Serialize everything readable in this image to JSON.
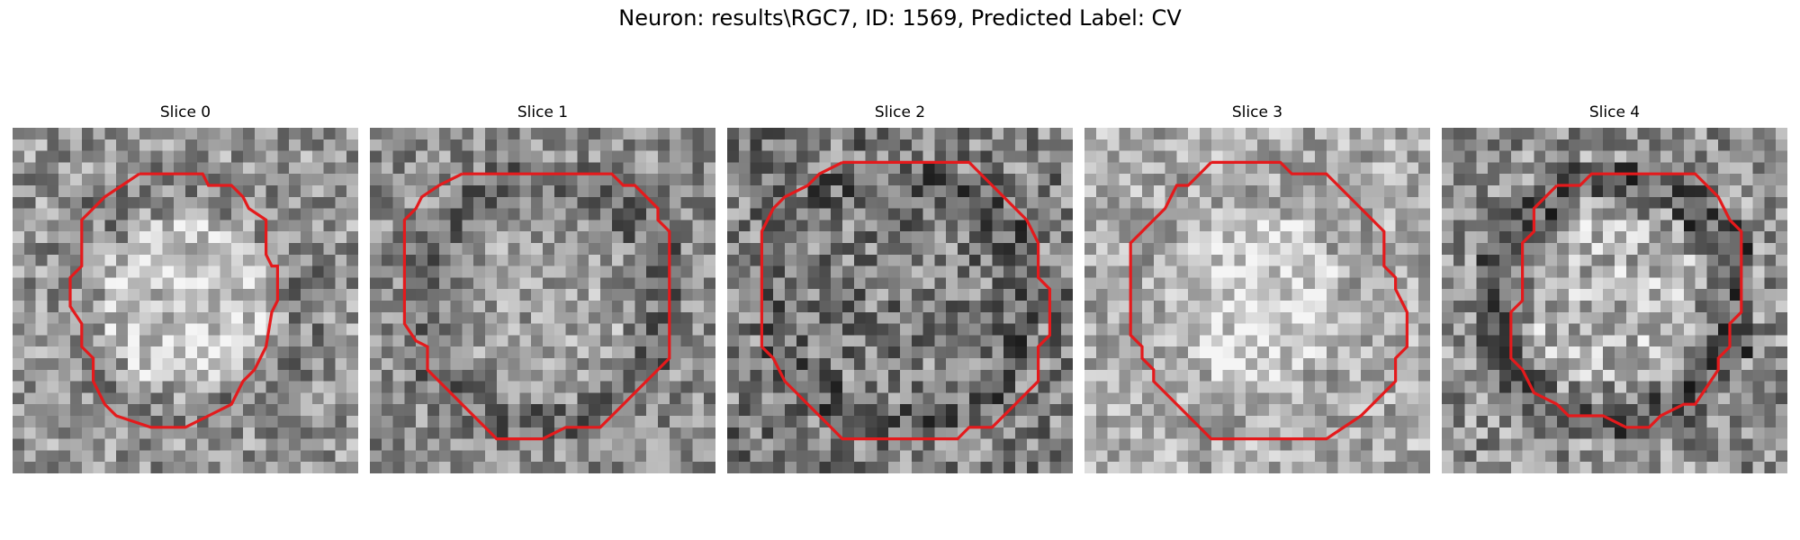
{
  "figure": {
    "title": "Neuron: results\\RGC7, ID: 1569, Predicted Label: CV"
  },
  "panels": [
    {
      "title": "Slice 0",
      "seed": 11,
      "base": 150,
      "contrast": 62,
      "inner_bright": 45,
      "ring_dark": 18
    },
    {
      "title": "Slice 1",
      "seed": 23,
      "base": 140,
      "contrast": 58,
      "inner_bright": 20,
      "ring_dark": 30
    },
    {
      "title": "Slice 2",
      "seed": 37,
      "base": 125,
      "contrast": 72,
      "inner_bright": 0,
      "ring_dark": 25
    },
    {
      "title": "Slice 3",
      "seed": 41,
      "base": 170,
      "contrast": 55,
      "inner_bright": 35,
      "ring_dark": 5
    },
    {
      "title": "Slice 4",
      "seed": 53,
      "base": 145,
      "contrast": 68,
      "inner_bright": 35,
      "ring_dark": 55
    }
  ],
  "colors": {
    "contour": "#e41a1c"
  }
}
